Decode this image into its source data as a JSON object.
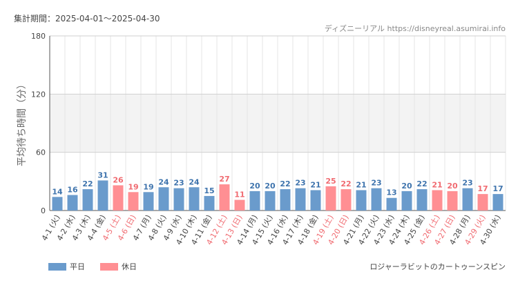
{
  "header": {
    "period": "集計期間：2025-04-01～2025-04-30",
    "credit": "ディズニーリアル https://disneyreal.asumirai.info"
  },
  "footer": {
    "subject": "ロジャーラビットのカートゥーンスピン"
  },
  "legend": [
    {
      "label": "平日",
      "color": "#6a9bcc"
    },
    {
      "label": "休日",
      "color": "#ff8f93"
    }
  ],
  "colors": {
    "weekday": "#6a9bcc",
    "holiday": "#ff8f93",
    "weekday_text": "#3f74ad",
    "holiday_text": "#f06a70",
    "band": "#f3f3f3"
  },
  "chart_data": {
    "type": "bar",
    "title": "",
    "xlabel": "",
    "ylabel": "平均待ち時間（分）",
    "ylim": [
      0,
      180
    ],
    "yticks": [
      0,
      60,
      120,
      180
    ],
    "grid": true,
    "legend_position": "bottom-left",
    "categories": [
      "4-1 (火)",
      "4-2 (水)",
      "4-3 (木)",
      "4-4 (金)",
      "4-5 (土)",
      "4-6 (日)",
      "4-7 (月)",
      "4-8 (火)",
      "4-9 (水)",
      "4-10 (木)",
      "4-11 (金)",
      "4-12 (土)",
      "4-13 (日)",
      "4-14 (月)",
      "4-15 (火)",
      "4-16 (水)",
      "4-17 (木)",
      "4-18 (金)",
      "4-19 (土)",
      "4-20 (日)",
      "4-21 (月)",
      "4-22 (火)",
      "4-23 (水)",
      "4-24 (木)",
      "4-25 (金)",
      "4-26 (土)",
      "4-27 (日)",
      "4-28 (月)",
      "4-29 (火)",
      "4-30 (水)"
    ],
    "values": [
      14,
      16,
      22,
      31,
      26,
      19,
      19,
      24,
      23,
      24,
      15,
      27,
      11,
      20,
      20,
      22,
      23,
      21,
      25,
      22,
      21,
      23,
      13,
      20,
      22,
      21,
      20,
      23,
      17,
      17
    ],
    "holiday": [
      false,
      false,
      false,
      false,
      true,
      true,
      false,
      false,
      false,
      false,
      false,
      true,
      true,
      false,
      false,
      false,
      false,
      false,
      true,
      true,
      false,
      false,
      false,
      false,
      false,
      true,
      true,
      false,
      true,
      false
    ]
  }
}
